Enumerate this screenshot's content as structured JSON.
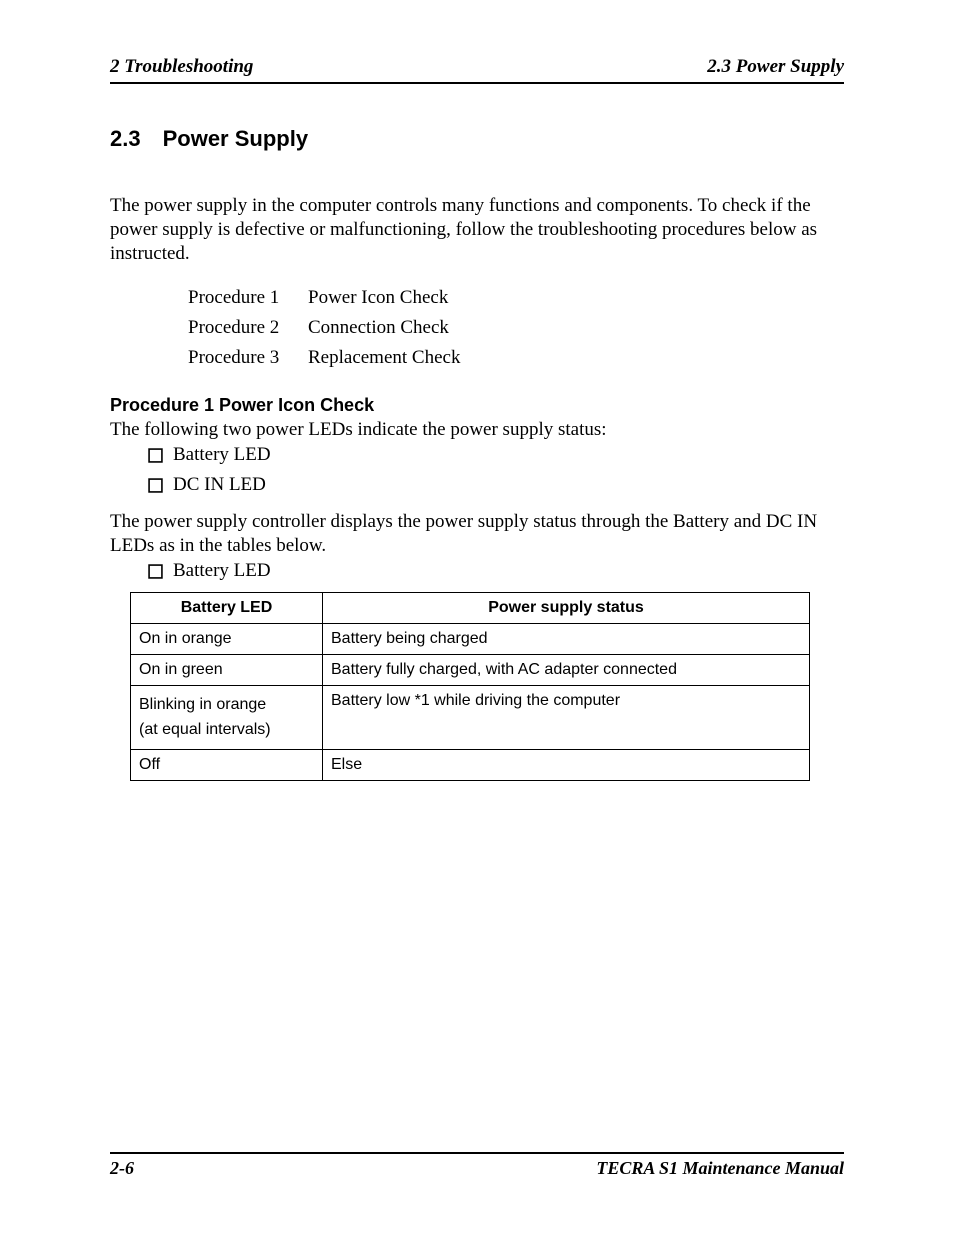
{
  "header": {
    "left": "2  Troubleshooting",
    "right": "2.3  Power Supply"
  },
  "section": {
    "number": "2.3",
    "title": "Power Supply"
  },
  "intro": "The power supply in the computer controls many functions and components. To check if the power supply is defective or malfunctioning, follow the troubleshooting procedures below as instructed.",
  "procedures": [
    {
      "label": "Procedure 1",
      "name": "Power Icon Check"
    },
    {
      "label": "Procedure 2",
      "name": "Connection Check"
    },
    {
      "label": "Procedure 3",
      "name": "Replacement Check"
    }
  ],
  "proc1": {
    "heading": "Procedure 1  Power Icon Check",
    "lead": "The following two power LEDs indicate the power supply status:",
    "leds": [
      "Battery LED",
      "DC IN LED"
    ],
    "lead2": "The power supply controller displays the power supply status through the Battery and DC IN LEDs as in the tables below.",
    "table_label": "Battery LED"
  },
  "table": {
    "columns": [
      "Battery LED",
      "Power supply status"
    ],
    "col_widths": [
      "175px",
      "auto"
    ],
    "rows": [
      [
        "On in orange",
        "Battery being charged"
      ],
      [
        "On in green",
        "Battery fully charged, with AC adapter connected"
      ],
      [
        "Blinking in orange\n(at equal intervals)",
        "Battery low *1 while driving the computer"
      ],
      [
        "Off",
        "Else"
      ]
    ]
  },
  "footer": {
    "left": "2-6",
    "right": "TECRA S1  Maintenance Manual"
  }
}
